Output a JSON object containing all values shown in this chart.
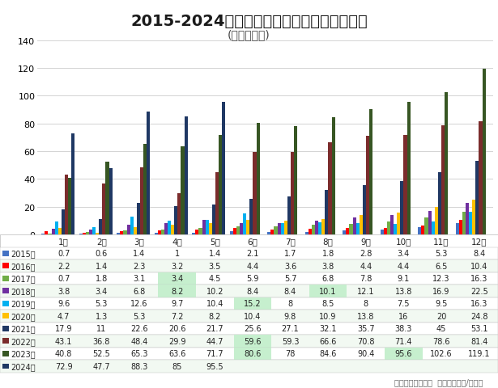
{
  "title": "2015-2024年我国新能源汽车月度销量趋势图",
  "subtitle": "(单位：万辆)",
  "footer": "数据来源：中汽协  制表：电池网/数据部",
  "months": [
    "1月",
    "2月",
    "3月",
    "4月",
    "5月",
    "6月",
    "7月",
    "8月",
    "9月",
    "10月",
    "11月",
    "12月"
  ],
  "ylim": [
    0,
    140
  ],
  "yticks": [
    0,
    20,
    40,
    60,
    80,
    100,
    120,
    140
  ],
  "series": [
    {
      "label": "2015年",
      "color": "#4472C4",
      "values": [
        0.7,
        0.6,
        1.4,
        1.0,
        1.4,
        2.1,
        1.7,
        1.8,
        2.8,
        3.4,
        5.3,
        8.4
      ]
    },
    {
      "label": "2016年",
      "color": "#FF0000",
      "values": [
        2.2,
        1.4,
        2.3,
        3.2,
        3.5,
        4.4,
        3.6,
        3.8,
        4.4,
        4.4,
        6.5,
        10.4
      ]
    },
    {
      "label": "2017年",
      "color": "#70AD47",
      "values": [
        0.7,
        1.8,
        3.1,
        3.4,
        4.5,
        5.9,
        5.7,
        6.8,
        7.8,
        9.1,
        12.3,
        16.3
      ]
    },
    {
      "label": "2018年",
      "color": "#7030A0",
      "values": [
        3.8,
        3.4,
        6.8,
        8.2,
        10.2,
        8.4,
        8.4,
        10.1,
        12.1,
        13.8,
        16.9,
        22.5
      ]
    },
    {
      "label": "2019年",
      "color": "#00B0F0",
      "values": [
        9.6,
        5.3,
        12.6,
        9.7,
        10.4,
        15.2,
        8.0,
        8.5,
        8.0,
        7.5,
        9.5,
        16.3
      ]
    },
    {
      "label": "2020年",
      "color": "#FFC000",
      "values": [
        4.7,
        1.3,
        5.3,
        7.2,
        8.2,
        10.4,
        9.8,
        10.9,
        13.8,
        16.0,
        20.0,
        24.8
      ]
    },
    {
      "label": "2021年",
      "color": "#203864",
      "values": [
        17.9,
        11.0,
        22.6,
        20.6,
        21.7,
        25.6,
        27.1,
        32.1,
        35.7,
        38.3,
        45.0,
        53.1
      ]
    },
    {
      "label": "2022年",
      "color": "#7B2C2C",
      "values": [
        43.1,
        36.8,
        48.4,
        29.9,
        44.7,
        59.6,
        59.3,
        66.6,
        70.8,
        71.4,
        78.6,
        81.4
      ]
    },
    {
      "label": "2023年",
      "color": "#375623",
      "values": [
        40.8,
        52.5,
        65.3,
        63.6,
        71.7,
        80.6,
        78.0,
        84.6,
        90.4,
        95.6,
        102.6,
        119.1
      ]
    },
    {
      "label": "2024年",
      "color": "#1F3864",
      "values": [
        72.9,
        47.7,
        88.3,
        85.0,
        95.5,
        null,
        null,
        null,
        null,
        null,
        null,
        null
      ]
    }
  ],
  "highlights": {
    "2017年": [
      3
    ],
    "2018年": [
      3,
      7
    ],
    "2019年": [
      5
    ],
    "2022年": [
      5
    ],
    "2023年": [
      5,
      9
    ]
  },
  "bg_color": "#FFFFFF",
  "grid_color": "#CCCCCC",
  "row_colors": [
    "#FFFFFF",
    "#F2F9F2"
  ],
  "highlight_color": "#C6EFCE",
  "title_fontsize": 14,
  "subtitle_fontsize": 10,
  "tick_fontsize": 8,
  "table_fontsize": 7
}
